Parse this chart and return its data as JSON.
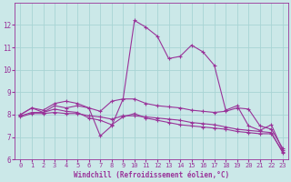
{
  "xlabel": "Windchill (Refroidissement éolien,°C)",
  "xlim": [
    -0.5,
    23.5
  ],
  "ylim": [
    6,
    13
  ],
  "yticks": [
    6,
    7,
    8,
    9,
    10,
    11,
    12
  ],
  "xticks": [
    0,
    1,
    2,
    3,
    4,
    5,
    6,
    7,
    8,
    9,
    10,
    11,
    12,
    13,
    14,
    15,
    16,
    17,
    18,
    19,
    20,
    21,
    22,
    23
  ],
  "bg_color": "#cbe8e8",
  "grid_color": "#a8d4d4",
  "line_color": "#993399",
  "spine_color": "#993399",
  "lines": [
    {
      "x": [
        0,
        1,
        2,
        3,
        4,
        5,
        6,
        7,
        8,
        9,
        10,
        11,
        12,
        13,
        14,
        15,
        16,
        17,
        18,
        19,
        20,
        21,
        22,
        23
      ],
      "y": [
        8.0,
        8.3,
        8.2,
        8.5,
        8.6,
        8.5,
        8.3,
        7.05,
        7.5,
        8.7,
        12.2,
        11.9,
        11.5,
        10.5,
        10.6,
        11.1,
        10.8,
        10.2,
        8.2,
        8.4,
        7.5,
        7.3,
        7.55,
        6.4
      ]
    },
    {
      "x": [
        0,
        1,
        2,
        3,
        4,
        5,
        6,
        7,
        8,
        9,
        10,
        11,
        12,
        13,
        14,
        15,
        16,
        17,
        18,
        19,
        20,
        21,
        22,
        23
      ],
      "y": [
        8.0,
        8.3,
        8.1,
        8.4,
        8.3,
        8.4,
        8.3,
        8.15,
        8.6,
        8.7,
        8.7,
        8.5,
        8.4,
        8.35,
        8.3,
        8.2,
        8.15,
        8.1,
        8.15,
        8.3,
        8.25,
        7.5,
        7.35,
        6.5
      ]
    },
    {
      "x": [
        0,
        1,
        2,
        3,
        4,
        5,
        6,
        7,
        8,
        9,
        10,
        11,
        12,
        13,
        14,
        15,
        16,
        17,
        18,
        19,
        20,
        21,
        22,
        23
      ],
      "y": [
        7.95,
        8.1,
        8.1,
        8.25,
        8.15,
        8.1,
        7.85,
        7.75,
        7.55,
        7.9,
        8.05,
        7.85,
        7.75,
        7.65,
        7.55,
        7.5,
        7.45,
        7.4,
        7.35,
        7.25,
        7.2,
        7.15,
        7.15,
        6.35
      ]
    },
    {
      "x": [
        0,
        1,
        2,
        3,
        4,
        5,
        6,
        7,
        8,
        9,
        10,
        11,
        12,
        13,
        14,
        15,
        16,
        17,
        18,
        19,
        20,
        21,
        22,
        23
      ],
      "y": [
        7.9,
        8.05,
        8.05,
        8.1,
        8.05,
        8.05,
        7.95,
        7.9,
        7.8,
        7.95,
        7.95,
        7.9,
        7.85,
        7.8,
        7.75,
        7.65,
        7.6,
        7.55,
        7.45,
        7.35,
        7.3,
        7.25,
        7.2,
        6.3
      ]
    }
  ]
}
